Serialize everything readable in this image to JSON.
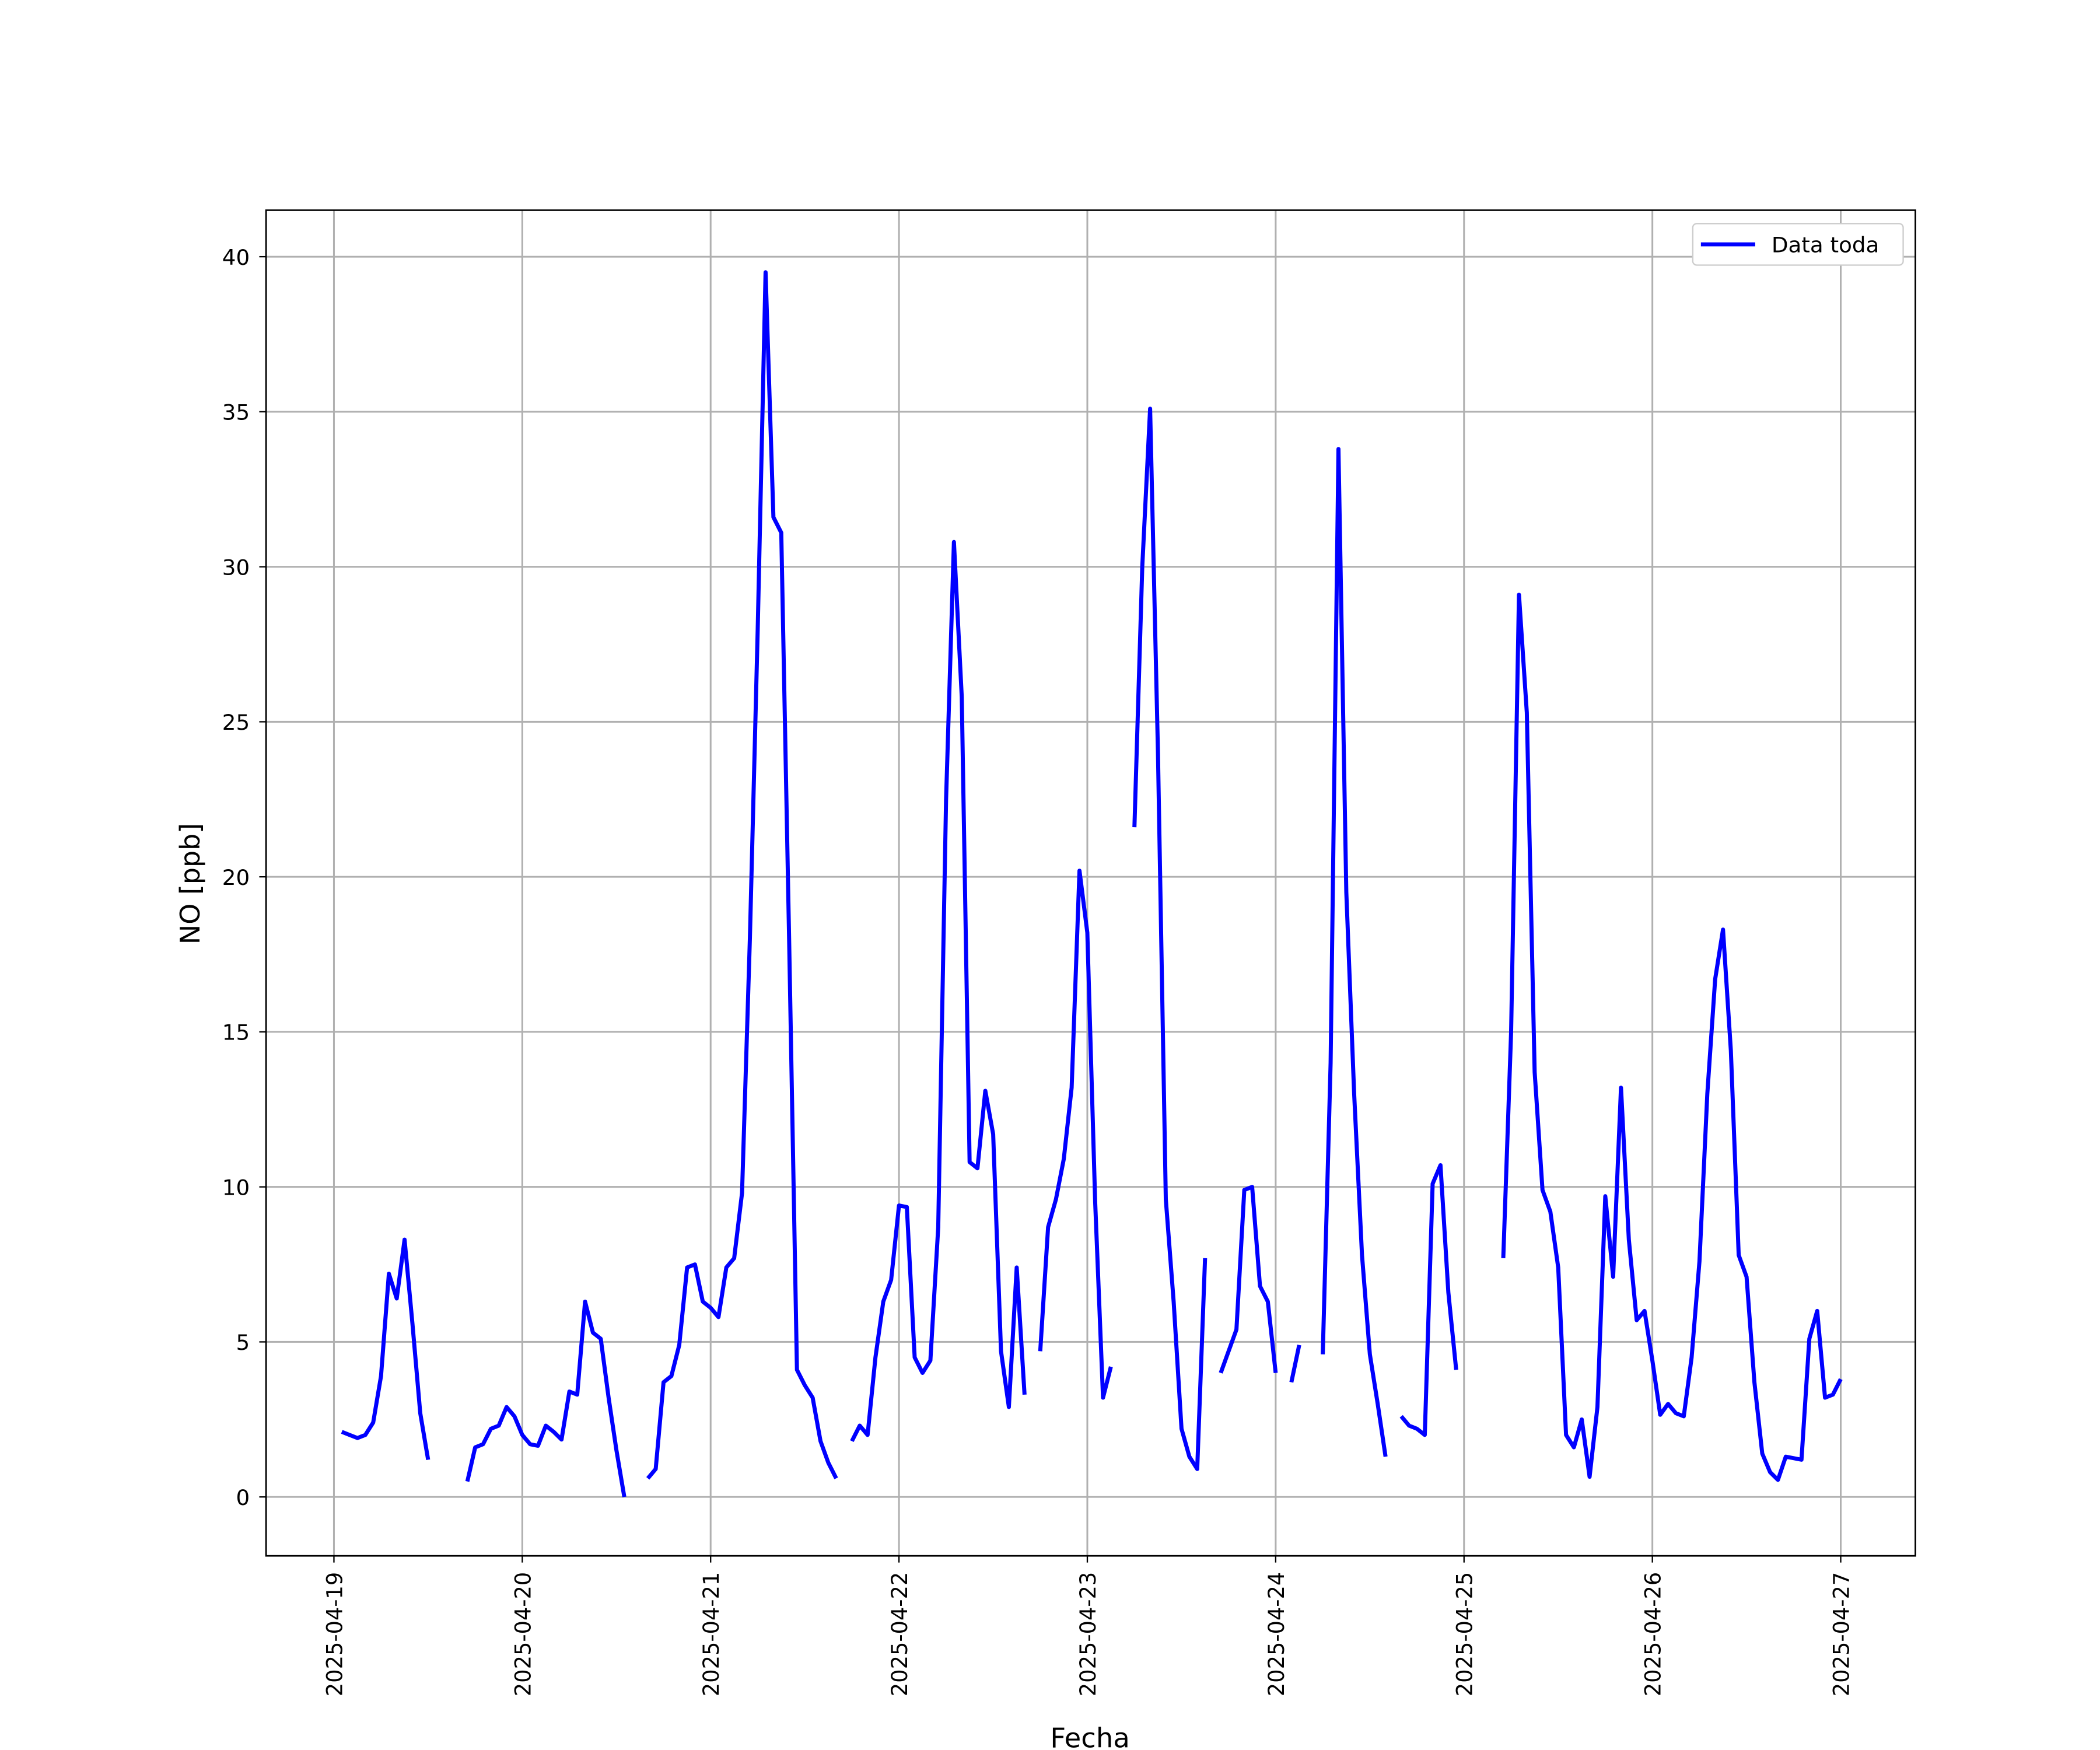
{
  "chart_data": {
    "type": "line",
    "xlabel": "Fecha",
    "ylabel": "NO [ppb]",
    "categories": [
      "2025-04-19",
      null,
      null,
      null,
      null,
      null,
      null,
      null,
      null,
      null,
      null,
      null,
      null,
      null,
      null,
      null,
      null,
      null,
      null,
      null,
      null,
      null,
      null,
      null,
      "2025-04-20",
      null,
      null,
      null,
      null,
      null,
      null,
      null,
      null,
      null,
      null,
      null,
      null,
      null,
      null,
      null,
      null,
      null,
      null,
      null,
      null,
      null,
      null,
      null,
      "2025-04-21",
      null,
      null,
      null,
      null,
      null,
      null,
      null,
      null,
      null,
      null,
      null,
      null,
      null,
      null,
      null,
      null,
      null,
      null,
      null,
      null,
      null,
      null,
      null,
      "2025-04-22",
      null,
      null,
      null,
      null,
      null,
      null,
      null,
      null,
      null,
      null,
      null,
      null,
      null,
      null,
      null,
      null,
      null,
      null,
      null,
      null,
      null,
      null,
      null,
      "2025-04-23",
      null,
      null,
      null,
      null,
      null,
      null,
      null,
      null,
      null,
      null,
      null,
      null,
      null,
      null,
      null,
      null,
      null,
      null,
      null,
      null,
      null,
      null,
      null,
      "2025-04-24",
      null,
      null,
      null,
      null,
      null,
      null,
      null,
      null,
      null,
      null,
      null,
      null,
      null,
      null,
      null,
      null,
      null,
      null,
      null,
      null,
      null,
      null,
      null,
      "2025-04-25",
      null,
      null,
      null,
      null,
      null,
      null,
      null,
      null,
      null,
      null,
      null,
      null,
      null,
      null,
      null,
      null,
      null,
      null,
      null,
      null,
      null,
      null,
      null,
      "2025-04-26",
      null,
      null,
      null,
      null,
      null,
      null,
      null,
      null,
      null,
      null,
      null,
      null,
      null,
      null,
      null,
      null,
      null,
      null,
      null,
      null,
      null,
      null,
      null,
      "2025-04-27"
    ],
    "series": [
      {
        "name": "Data toda",
        "color": "#0000ff",
        "values": [
          null,
          2.1,
          2.0,
          1.9,
          2.0,
          2.4,
          3.9,
          7.2,
          6.4,
          8.3,
          5.6,
          2.7,
          1.2,
          null,
          null,
          null,
          null,
          0.5,
          1.6,
          1.7,
          2.2,
          2.3,
          2.9,
          2.6,
          2.0,
          1.7,
          1.65,
          2.3,
          2.1,
          1.85,
          3.4,
          3.3,
          6.3,
          5.3,
          5.1,
          3.2,
          1.5,
          0.0,
          null,
          null,
          0.6,
          0.9,
          3.7,
          3.9,
          4.9,
          7.4,
          7.5,
          6.3,
          6.1,
          5.8,
          7.4,
          7.7,
          9.8,
          18,
          28,
          39.5,
          31.6,
          31.1,
          18,
          4.1,
          3.6,
          3.2,
          1.8,
          1.1,
          0.6,
          null,
          1.8,
          2.3,
          2.0,
          4.5,
          6.3,
          7.0,
          9.4,
          9.35,
          4.5,
          4.0,
          4.4,
          8.7,
          22.5,
          30.8,
          25.8,
          10.8,
          10.6,
          13.1,
          11.7,
          4.7,
          2.9,
          7.4,
          3.3,
          null,
          4.7,
          8.7,
          9.6,
          10.9,
          13.2,
          20.2,
          18.2,
          9.5,
          3.2,
          4.2,
          null,
          null,
          21.6,
          30,
          35.1,
          24,
          9.6,
          6.3,
          2.2,
          1.3,
          0.9,
          7.7,
          null,
          4.0,
          4.7,
          5.4,
          9.9,
          10.0,
          6.8,
          6.3,
          4.0,
          null,
          3.7,
          4.9,
          null,
          null,
          4.6,
          14,
          33.8,
          19.5,
          13,
          7.8,
          4.6,
          3.0,
          1.3,
          null,
          2.6,
          2.3,
          2.2,
          2.0,
          10.1,
          10.7,
          6.6,
          4.1,
          null,
          null,
          null,
          null,
          null,
          7.7,
          15,
          29.1,
          25.3,
          13.7,
          9.9,
          9.2,
          7.4,
          2.0,
          1.6,
          2.5,
          0.65,
          2.9,
          9.7,
          7.1,
          13.2,
          8.3,
          5.7,
          6.0,
          4.4,
          2.65,
          3.0,
          2.7,
          2.6,
          4.5,
          7.6,
          13,
          16.7,
          18.3,
          14.4,
          7.8,
          7.1,
          3.7,
          1.4,
          0.8,
          0.55,
          1.3,
          1.25,
          1.2,
          5.1,
          6.0,
          3.2,
          3.3,
          3.8
        ]
      }
    ],
    "ylim": [
      -1.9,
      41.5
    ],
    "yticks": [
      0,
      5,
      10,
      15,
      20,
      25,
      30,
      35,
      40
    ],
    "grid": true,
    "legend": "upper right"
  }
}
